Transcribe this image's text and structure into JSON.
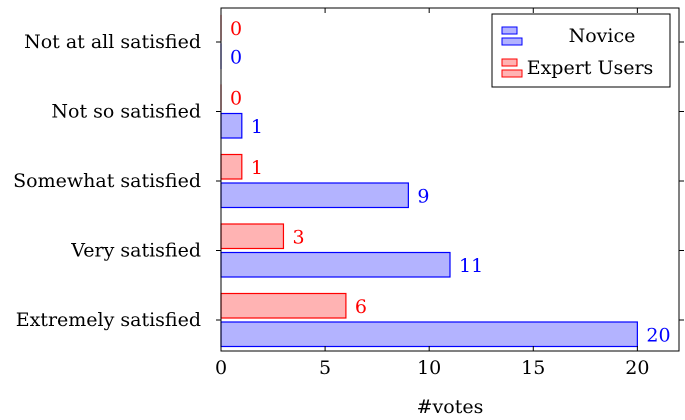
{
  "chart_data": {
    "type": "bar",
    "orientation": "horizontal",
    "categories": [
      "Extremely satisfied",
      "Very satisfied",
      "Somewhat satisfied",
      "Not so satisfied",
      "Not at all satisfied"
    ],
    "series": [
      {
        "name": "Novice",
        "values": [
          20,
          11,
          9,
          1,
          0
        ],
        "fill": "#b3b3ff",
        "stroke": "#0000ff",
        "label_color": "#0000ff"
      },
      {
        "name": "Expert Users",
        "values": [
          6,
          3,
          1,
          0,
          0
        ],
        "fill": "#ffb3b3",
        "stroke": "#ff0000",
        "label_color": "#ff0000"
      }
    ],
    "xlabel": "#votes",
    "ylabel": "",
    "title": "",
    "xlim": [
      0,
      22
    ],
    "xticks": [
      0,
      5,
      10,
      15,
      20
    ],
    "grid": false,
    "legend_position": "top-right",
    "data_labels": true
  }
}
